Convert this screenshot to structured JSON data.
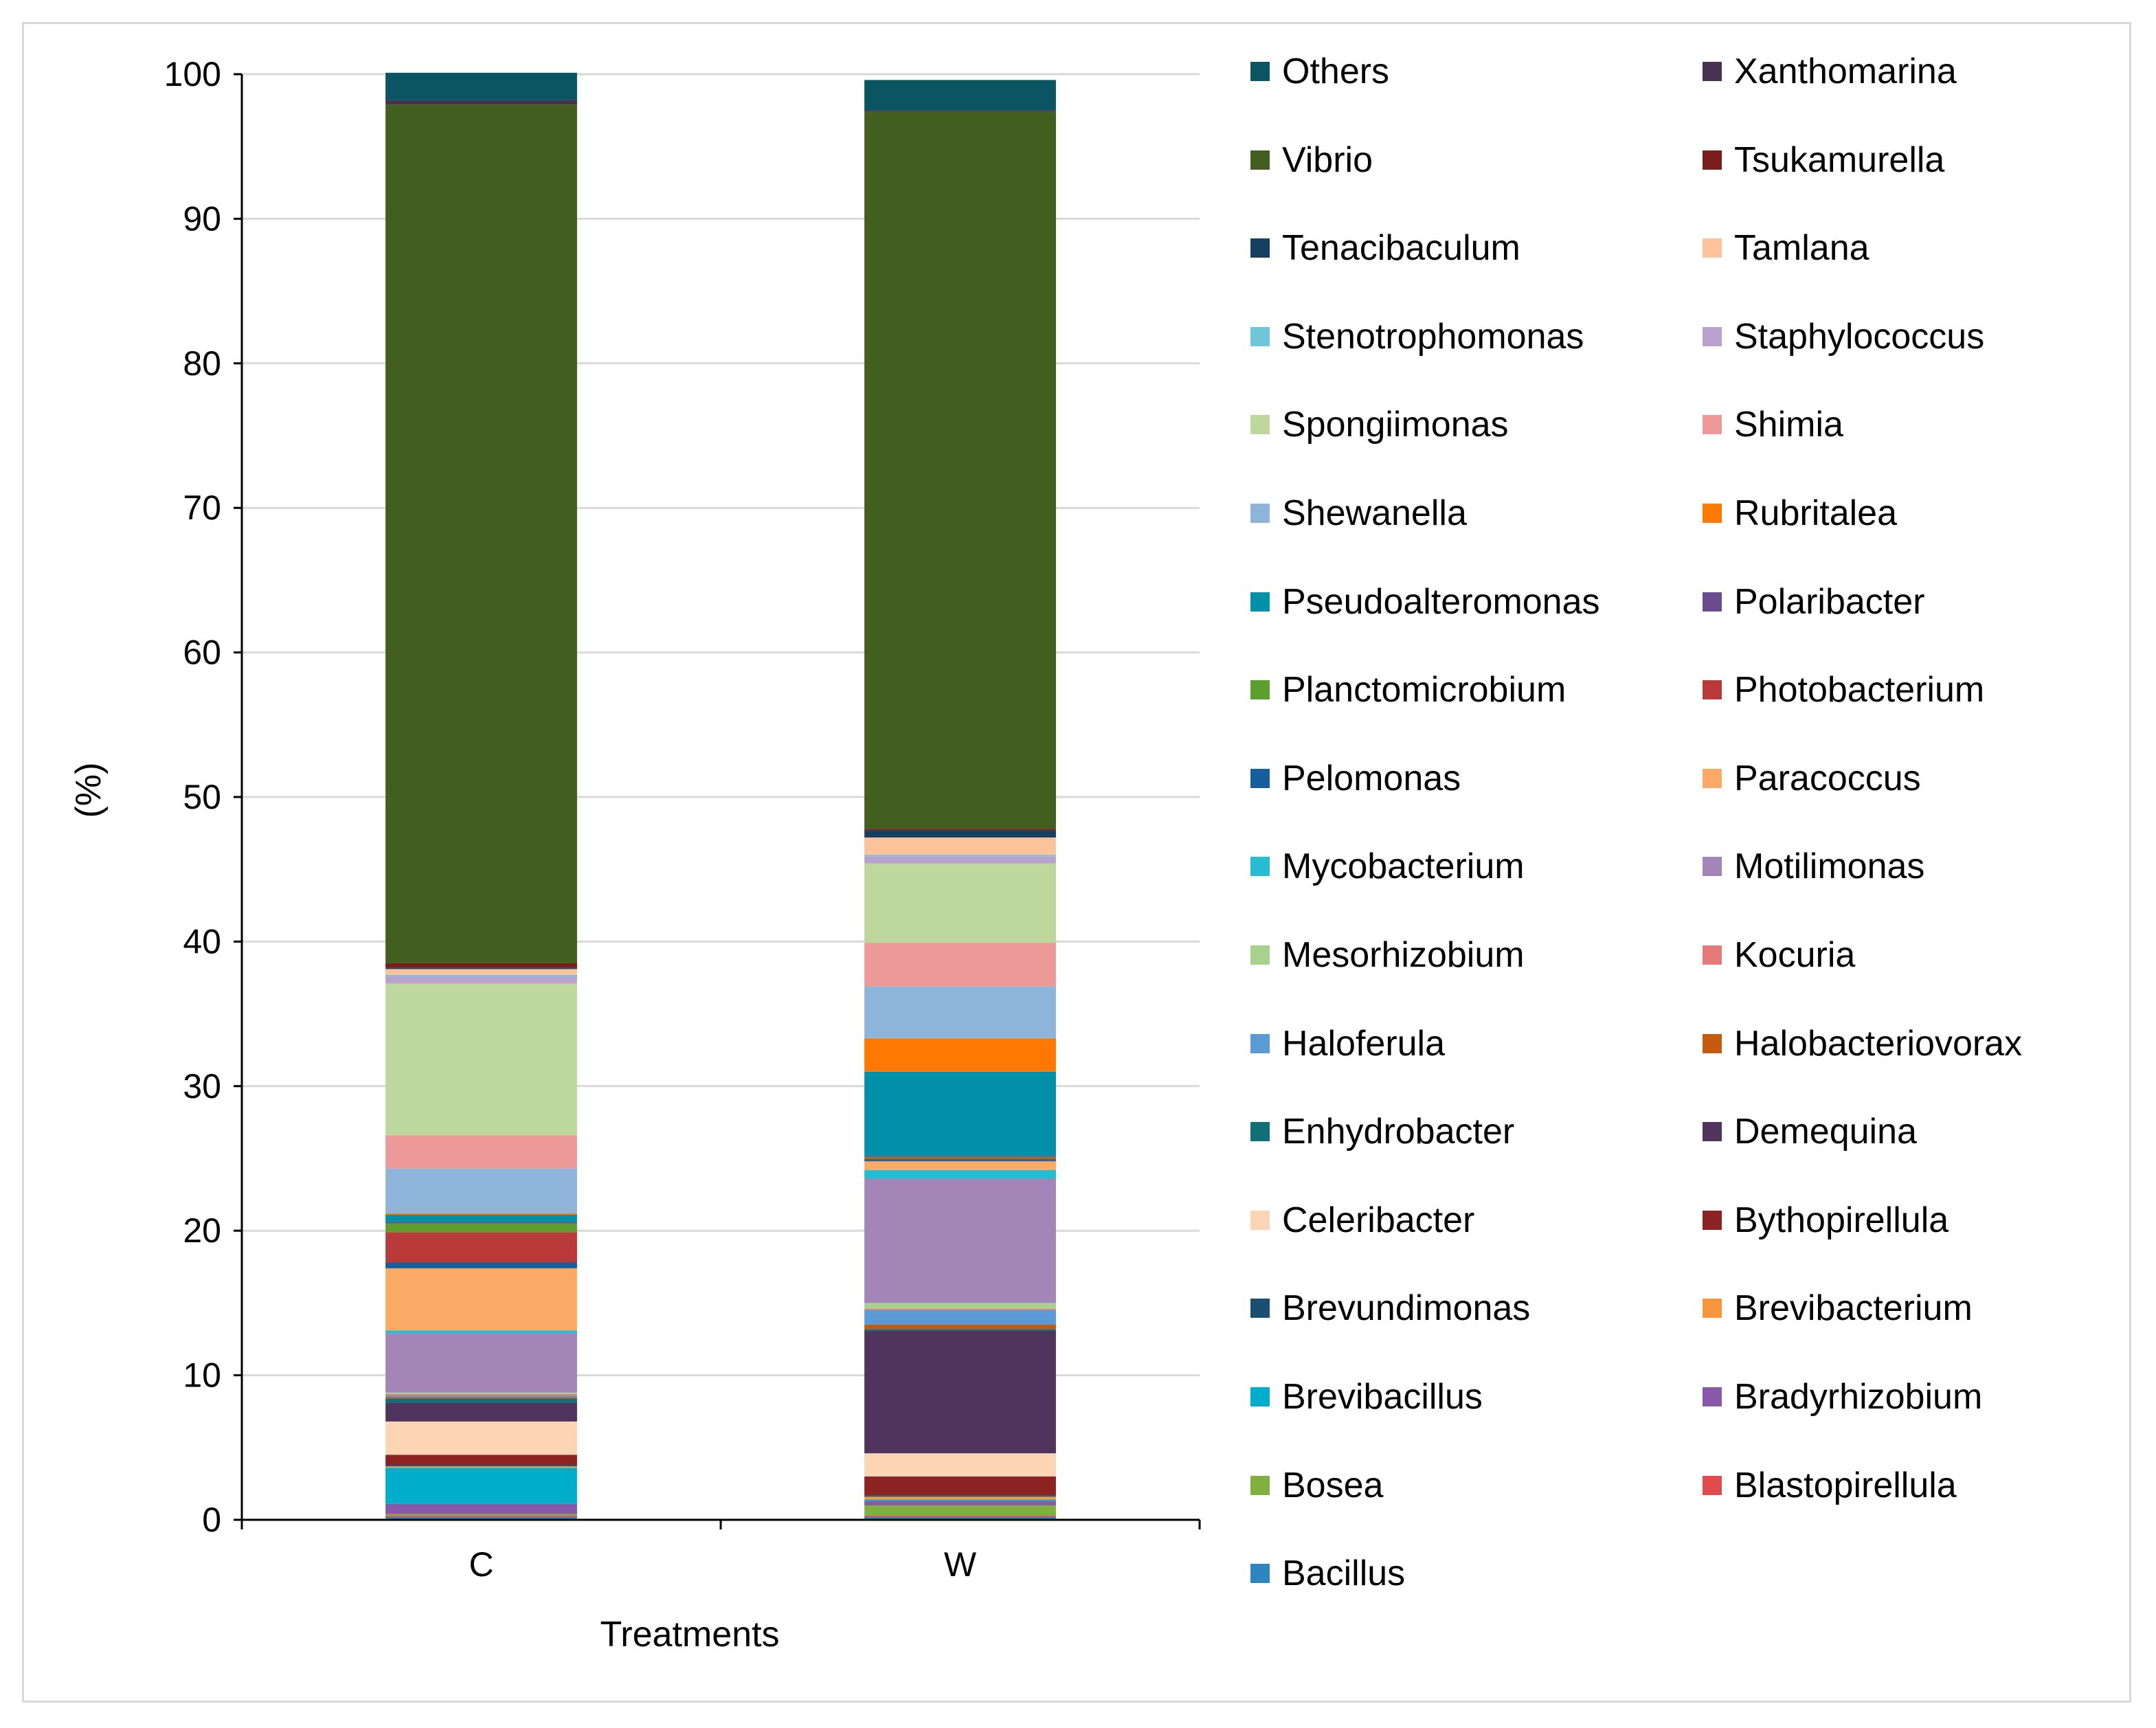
{
  "chart_data": {
    "type": "bar",
    "stacked": true,
    "title": "",
    "xlabel": "Treatments",
    "ylabel": "(%)",
    "ylim": [
      0,
      100
    ],
    "yticks": [
      0,
      10,
      20,
      30,
      40,
      50,
      60,
      70,
      80,
      90,
      100
    ],
    "grid": true,
    "legend_position": "right",
    "categories": [
      "C",
      "W"
    ],
    "series": [
      {
        "name": "Bacillus",
        "color": "#2E86C1",
        "values": [
          0.2,
          0.2
        ]
      },
      {
        "name": "Blastopirellula",
        "color": "#E04B4B",
        "values": [
          0.1,
          0.1
        ]
      },
      {
        "name": "Bosea",
        "color": "#7FB040",
        "values": [
          0.1,
          0.7
        ]
      },
      {
        "name": "Bradyrhizobium",
        "color": "#8A58A8",
        "values": [
          0.7,
          0.3
        ]
      },
      {
        "name": "Brevibacillus",
        "color": "#00AECC",
        "values": [
          2.5,
          0.1
        ]
      },
      {
        "name": "Brevibacterium",
        "color": "#F7963C",
        "values": [
          0.1,
          0.2
        ]
      },
      {
        "name": "Brevundimonas",
        "color": "#1B4F72",
        "values": [
          0.1,
          0.1
        ]
      },
      {
        "name": "Bythopirellula",
        "color": "#8B2323",
        "values": [
          0.7,
          1.3
        ]
      },
      {
        "name": "Celeribacter",
        "color": "#FCD5B5",
        "values": [
          2.3,
          1.6
        ]
      },
      {
        "name": "Demequina",
        "color": "#4F355E",
        "values": [
          1.3,
          8.5
        ]
      },
      {
        "name": "Enhydrobacter",
        "color": "#116F78",
        "values": [
          0.3,
          0.1
        ]
      },
      {
        "name": "Halobacteriovorax",
        "color": "#C55A11",
        "values": [
          0.1,
          0.3
        ]
      },
      {
        "name": "Haloferula",
        "color": "#5B9BD5",
        "values": [
          0.1,
          1.0
        ]
      },
      {
        "name": "Kocuria",
        "color": "#E57A7A",
        "values": [
          0.1,
          0.1
        ]
      },
      {
        "name": "Mesorhizobium",
        "color": "#A9D18E",
        "values": [
          0.1,
          0.4
        ]
      },
      {
        "name": "Motilimonas",
        "color": "#A385B8",
        "values": [
          4.1,
          8.6
        ]
      },
      {
        "name": "Mycobacterium",
        "color": "#24BDD4",
        "values": [
          0.2,
          0.6
        ]
      },
      {
        "name": "Paracoccus",
        "color": "#FBAA66",
        "values": [
          4.3,
          0.6
        ]
      },
      {
        "name": "Pelomonas",
        "color": "#155F9E",
        "values": [
          0.4,
          0.1
        ]
      },
      {
        "name": "Photobacterium",
        "color": "#BA3A3A",
        "values": [
          2.1,
          0.1
        ]
      },
      {
        "name": "Planctomicrobium",
        "color": "#5E9E2E",
        "values": [
          0.6,
          0.1
        ]
      },
      {
        "name": "Polaribacter",
        "color": "#6A4C8C",
        "values": [
          0.1,
          0.1
        ]
      },
      {
        "name": "Pseudoalteromonas",
        "color": "#0090A8",
        "values": [
          0.5,
          5.8
        ]
      },
      {
        "name": "Rubritalea",
        "color": "#FF7800",
        "values": [
          0.1,
          2.3
        ]
      },
      {
        "name": "Shewanella",
        "color": "#8EB4DA",
        "values": [
          3.1,
          3.6
        ]
      },
      {
        "name": "Shimia",
        "color": "#EE9999",
        "values": [
          2.3,
          3.0
        ]
      },
      {
        "name": "Spongiimonas",
        "color": "#BDD79C",
        "values": [
          10.5,
          5.5
        ]
      },
      {
        "name": "Staphylococcus",
        "color": "#B9A3CC",
        "values": [
          0.5,
          0.5
        ]
      },
      {
        "name": "Stenotrophomonas",
        "color": "#6EC6D8",
        "values": [
          0.1,
          0.1
        ]
      },
      {
        "name": "Tamlana",
        "color": "#FBC29B",
        "values": [
          0.4,
          1.2
        ]
      },
      {
        "name": "Tenacibaculum",
        "color": "#173F5F",
        "values": [
          0.1,
          0.5
        ]
      },
      {
        "name": "Tsukamurella",
        "color": "#7A1C1C",
        "values": [
          0.3,
          0.1
        ]
      },
      {
        "name": "Vibrio",
        "color": "#435F1F",
        "values": [
          59.4,
          49.6
        ]
      },
      {
        "name": "Xanthomarina",
        "color": "#46314F",
        "values": [
          0.3,
          0.1
        ]
      },
      {
        "name": "Others",
        "color": "#0B5563",
        "values": [
          1.9,
          2.1
        ]
      }
    ],
    "legend_order": [
      "Others",
      "Xanthomarina",
      "Vibrio",
      "Tsukamurella",
      "Tenacibaculum",
      "Tamlana",
      "Stenotrophomonas",
      "Staphylococcus",
      "Spongiimonas",
      "Shimia",
      "Shewanella",
      "Rubritalea",
      "Pseudoalteromonas",
      "Polaribacter",
      "Planctomicrobium",
      "Photobacterium",
      "Pelomonas",
      "Paracoccus",
      "Mycobacterium",
      "Motilimonas",
      "Mesorhizobium",
      "Kocuria",
      "Haloferula",
      "Halobacteriovorax",
      "Enhydrobacter",
      "Demequina",
      "Celeribacter",
      "Bythopirellula",
      "Brevundimonas",
      "Brevibacterium",
      "Brevibacillus",
      "Bradyrhizobium",
      "Bosea",
      "Blastopirellula",
      "Bacillus"
    ]
  }
}
